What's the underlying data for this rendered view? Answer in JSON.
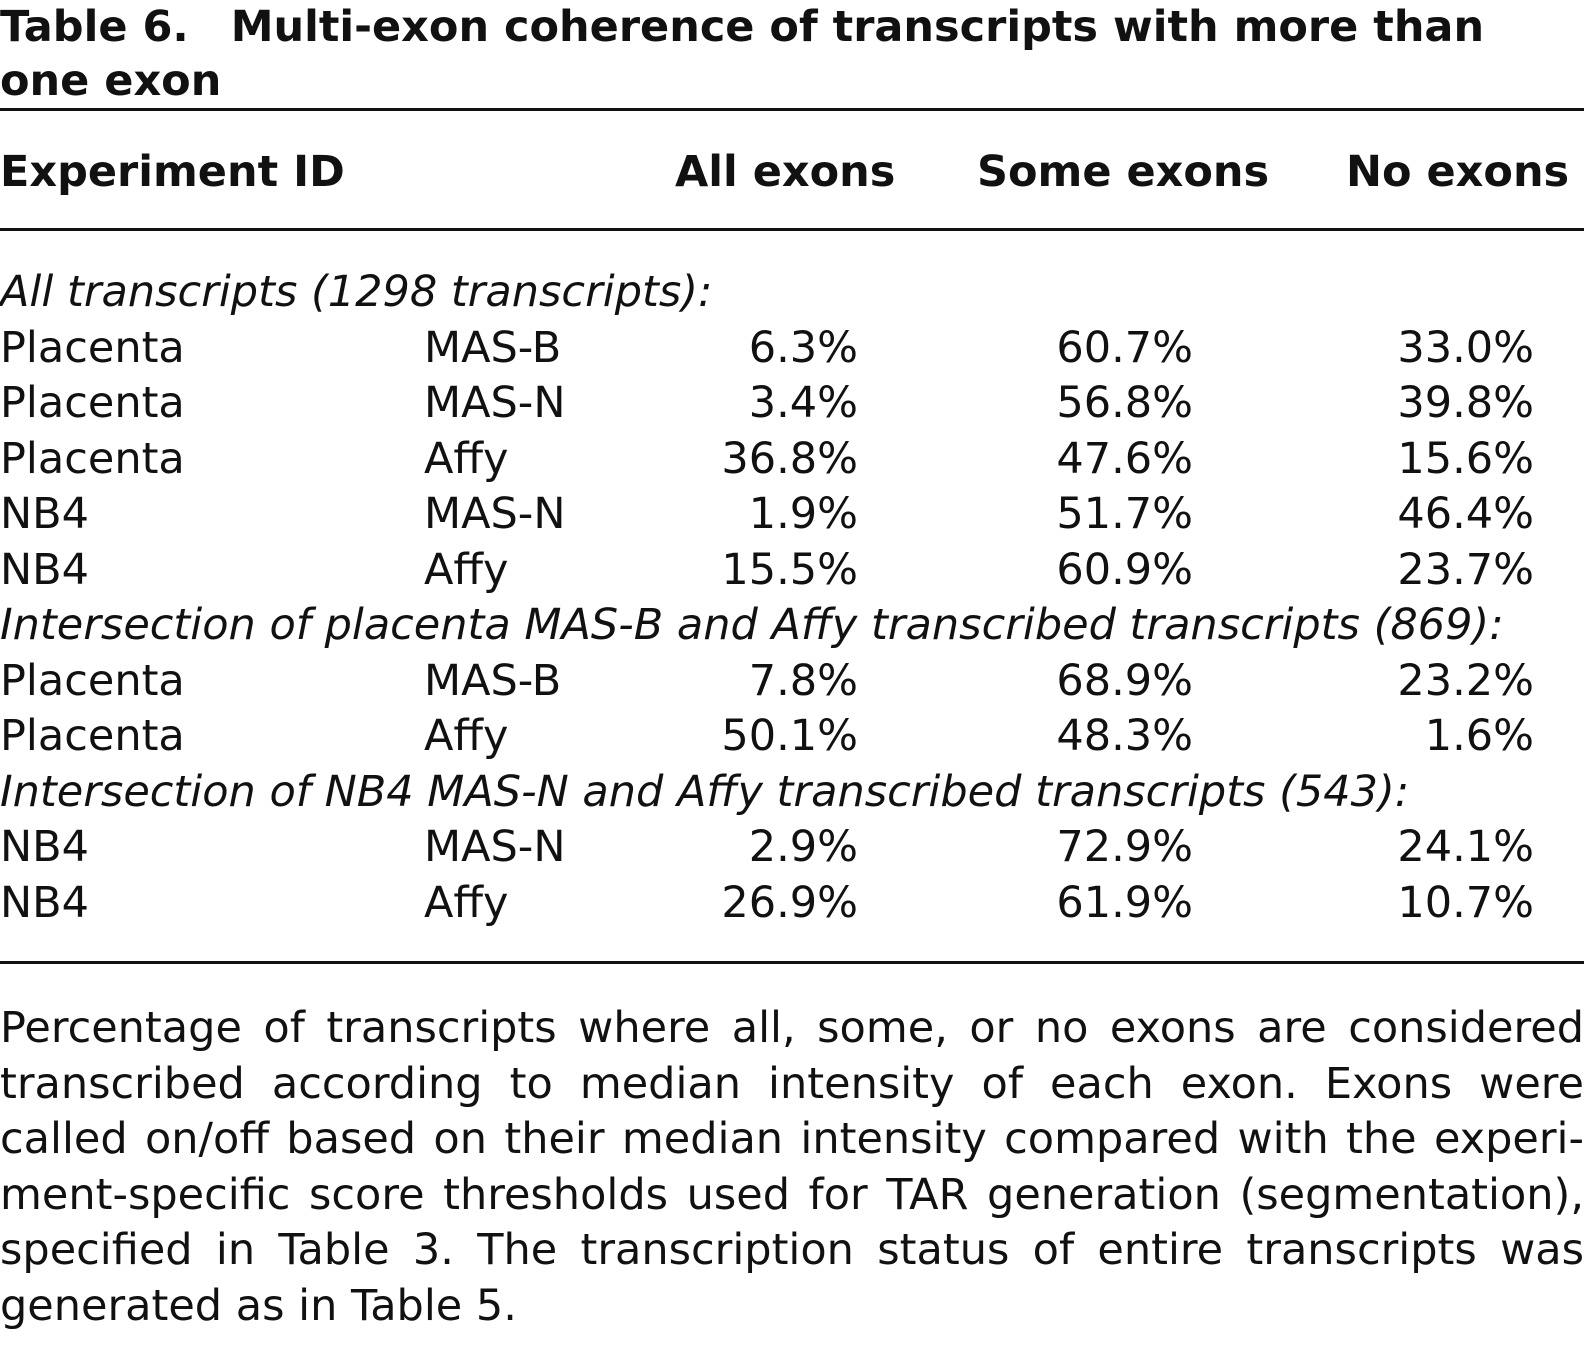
{
  "title": {
    "label": "Table 6.",
    "text": "Multi-exon coherence of transcripts with more than one exon"
  },
  "columns": {
    "experiment_id": "Experiment ID",
    "all_exons": "All exons",
    "some_exons": "Some exons",
    "no_exons": "No exons"
  },
  "groups": [
    {
      "heading": "All transcripts (1298 transcripts):",
      "rows": [
        {
          "sample": "Placenta",
          "method": "MAS-B",
          "all": "6.3%",
          "some": "60.7%",
          "none": "33.0%"
        },
        {
          "sample": "Placenta",
          "method": "MAS-N",
          "all": "3.4%",
          "some": "56.8%",
          "none": "39.8%"
        },
        {
          "sample": "Placenta",
          "method": "Affy",
          "all": "36.8%",
          "some": "47.6%",
          "none": "15.6%"
        },
        {
          "sample": "NB4",
          "method": "MAS-N",
          "all": "1.9%",
          "some": "51.7%",
          "none": "46.4%"
        },
        {
          "sample": "NB4",
          "method": "Affy",
          "all": "15.5%",
          "some": "60.9%",
          "none": "23.7%"
        }
      ]
    },
    {
      "heading": "Intersection of placenta MAS-B and Affy transcribed transcripts (869):",
      "rows": [
        {
          "sample": "Placenta",
          "method": "MAS-B",
          "all": "7.8%",
          "some": "68.9%",
          "none": "23.2%"
        },
        {
          "sample": "Placenta",
          "method": "Affy",
          "all": "50.1%",
          "some": "48.3%",
          "none": "1.6%"
        }
      ]
    },
    {
      "heading": "Intersection of NB4 MAS-N and Affy transcribed transcripts (543):",
      "rows": [
        {
          "sample": "NB4",
          "method": "MAS-N",
          "all": "2.9%",
          "some": "72.9%",
          "none": "24.1%"
        },
        {
          "sample": "NB4",
          "method": "Affy",
          "all": "26.9%",
          "some": "61.9%",
          "none": "10.7%"
        }
      ]
    }
  ],
  "footnote": "Percentage of transcripts where all, some, or no exons are considered transcribed according to median intensity of each exon. Exons were called on/off based on their median intensity compared with the experi­ment-specific score thresholds used for TAR generation (segmentation), specified in Table 3. The transcription status of entire transcripts was generated as in Table 5."
}
